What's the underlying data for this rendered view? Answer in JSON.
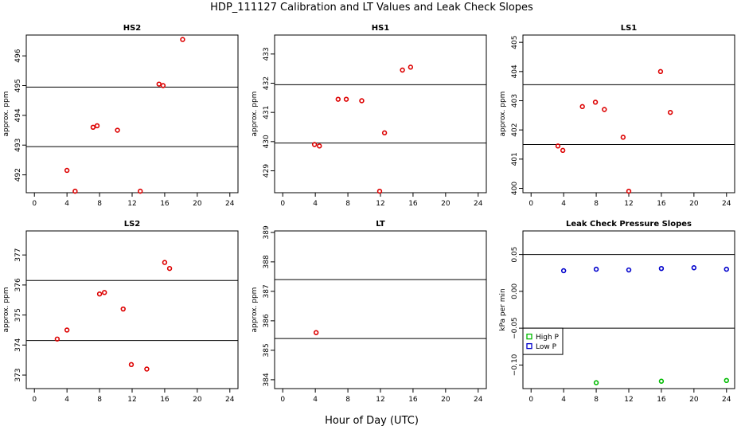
{
  "title": "HDP_111127  Calibration and LT Values and Leak Check Slopes",
  "xlabel": "Hour of Day (UTC)",
  "chart_data": [
    {
      "type": "scatter",
      "title": "HS2",
      "ylabel": "approx. ppm",
      "xlim": [
        -1,
        25
      ],
      "ylim": [
        491.4,
        496.7
      ],
      "xticks": [
        0,
        4,
        8,
        12,
        16,
        20,
        24
      ],
      "yticks": [
        492,
        493,
        494,
        495,
        496
      ],
      "hlines": [
        492.95,
        494.95
      ],
      "points": {
        "x": [
          4.0,
          5.0,
          7.2,
          7.7,
          10.2,
          13.0,
          15.3,
          15.8,
          18.2
        ],
        "y": [
          492.15,
          491.45,
          493.6,
          493.65,
          493.5,
          491.45,
          495.05,
          495.0,
          496.55
        ]
      },
      "color": "#dd0000"
    },
    {
      "type": "scatter",
      "title": "HS1",
      "ylabel": "approx. ppm",
      "xlim": [
        -1,
        25
      ],
      "ylim": [
        428.25,
        433.65
      ],
      "xticks": [
        0,
        4,
        8,
        12,
        16,
        20,
        24
      ],
      "yticks": [
        429,
        430,
        431,
        432,
        433
      ],
      "hlines": [
        429.95,
        431.95
      ],
      "points": {
        "x": [
          3.9,
          4.5,
          6.8,
          7.8,
          9.7,
          11.9,
          12.5,
          14.7,
          15.7
        ],
        "y": [
          429.9,
          429.85,
          431.45,
          431.45,
          431.4,
          428.3,
          430.3,
          432.45,
          432.55
        ]
      },
      "color": "#dd0000"
    },
    {
      "type": "scatter",
      "title": "LS1",
      "ylabel": "approx. ppm",
      "xlim": [
        -1,
        25
      ],
      "ylim": [
        399.85,
        405.25
      ],
      "xticks": [
        0,
        4,
        8,
        12,
        16,
        20,
        24
      ],
      "yticks": [
        400,
        401,
        402,
        403,
        404,
        405
      ],
      "hlines": [
        401.5,
        403.55
      ],
      "points": {
        "x": [
          3.3,
          3.9,
          6.3,
          7.9,
          9.0,
          11.3,
          12.0,
          15.9,
          17.1
        ],
        "y": [
          401.45,
          401.3,
          402.8,
          402.95,
          402.7,
          401.75,
          399.9,
          404.0,
          402.6
        ]
      },
      "color": "#dd0000"
    },
    {
      "type": "scatter",
      "title": "LS2",
      "ylabel": "approx. ppm",
      "xlim": [
        -1,
        25
      ],
      "ylim": [
        372.55,
        377.8
      ],
      "xticks": [
        0,
        4,
        8,
        12,
        16,
        20,
        24
      ],
      "yticks": [
        373,
        374,
        375,
        376,
        377
      ],
      "hlines": [
        374.15,
        376.15
      ],
      "points": {
        "x": [
          2.8,
          4.0,
          8.0,
          8.6,
          10.9,
          11.9,
          13.8,
          16.0,
          16.6
        ],
        "y": [
          374.2,
          374.5,
          375.7,
          375.75,
          375.2,
          373.35,
          373.2,
          376.75,
          376.55
        ]
      },
      "color": "#dd0000"
    },
    {
      "type": "scatter",
      "title": "LT",
      "ylabel": "approx. ppm",
      "xlim": [
        -1,
        25
      ],
      "ylim": [
        383.7,
        389.05
      ],
      "xticks": [
        0,
        4,
        8,
        12,
        16,
        20,
        24
      ],
      "yticks": [
        384,
        385,
        386,
        387,
        388,
        389
      ],
      "hlines": [
        385.4,
        387.4
      ],
      "points": {
        "x": [
          4.1
        ],
        "y": [
          385.6
        ]
      },
      "color": "#dd0000"
    },
    {
      "type": "scatter",
      "title": "Leak Check Pressure Slopes",
      "ylabel": "kPa per min",
      "xlim": [
        -1,
        25
      ],
      "ylim": [
        -0.132,
        0.082
      ],
      "xticks": [
        0,
        4,
        8,
        12,
        16,
        20,
        24
      ],
      "yticks": [
        -0.1,
        -0.05,
        0.0,
        0.05
      ],
      "ytick_labels": [
        "−0.10",
        "−0.05",
        "0.00",
        "0.05"
      ],
      "hlines": [
        0.05,
        -0.05
      ],
      "series": [
        {
          "name": "High P",
          "color": "#00bb00",
          "x": [
            8,
            16,
            24
          ],
          "y": [
            -0.124,
            -0.122,
            -0.121
          ]
        },
        {
          "name": "Low P",
          "color": "#0000cc",
          "x": [
            4,
            8,
            12,
            16,
            20,
            24
          ],
          "y": [
            0.028,
            0.03,
            0.029,
            0.031,
            0.032,
            0.03
          ]
        }
      ],
      "legend": "bottom-left"
    }
  ]
}
